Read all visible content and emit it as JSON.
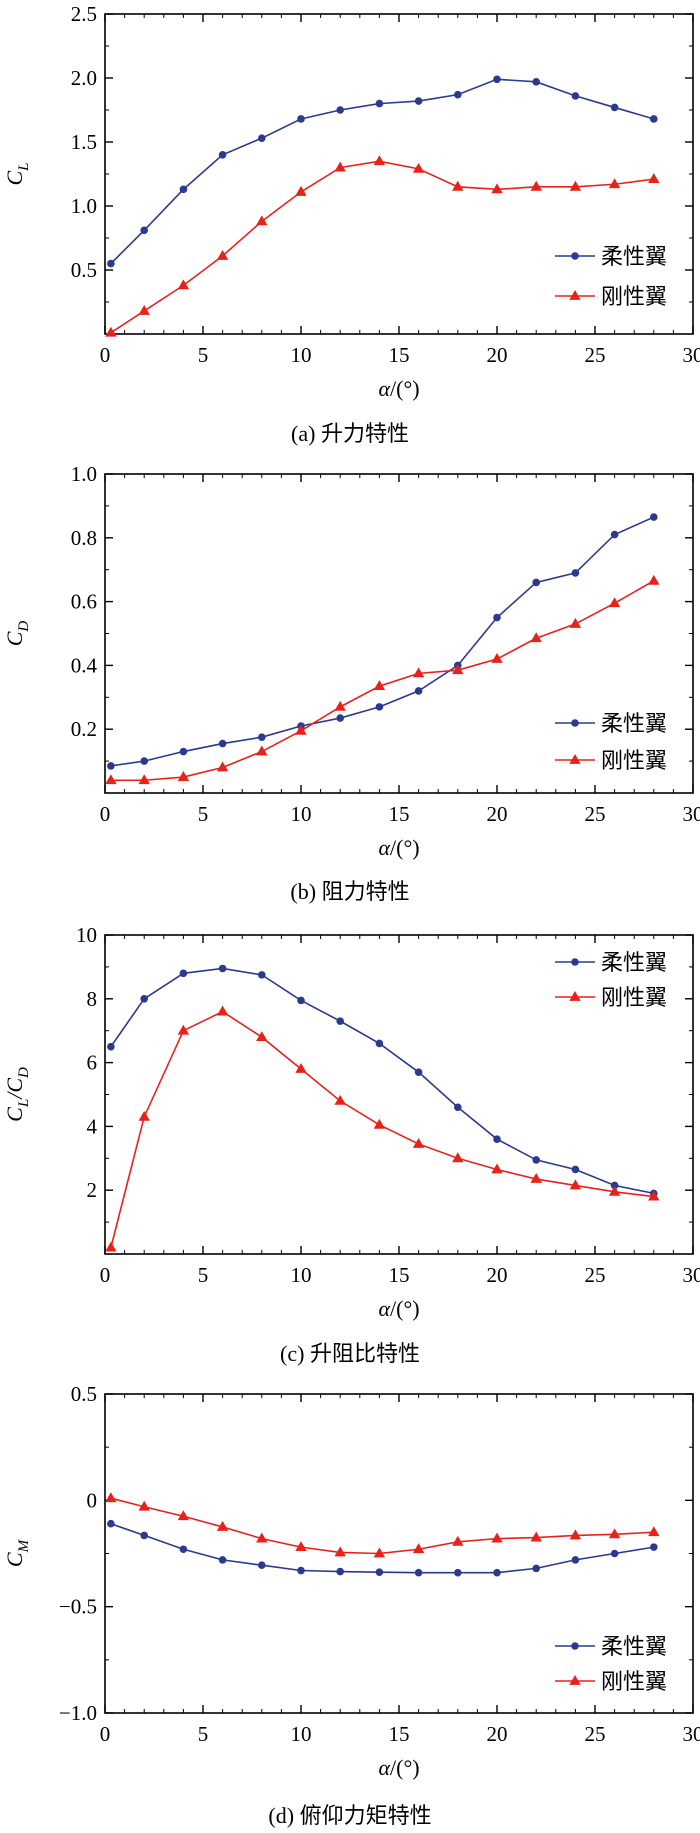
{
  "colors": {
    "flexible": "#2b3a8f",
    "rigid": "#e8221b",
    "axis": "#000000"
  },
  "x_tick_labels": [
    "0",
    "5",
    "10",
    "15",
    "20",
    "25",
    "30"
  ],
  "chart_data": [
    {
      "type": "line",
      "caption": "(a) 升力特性",
      "ylabel": {
        "main": "C",
        "sub": "L"
      },
      "xlabel": {
        "var": "α",
        "unit": "/(°)"
      },
      "xlim": [
        0,
        30
      ],
      "ylim": [
        0,
        2.5
      ],
      "y_ticks": [
        0.5,
        1.0,
        1.5,
        2.0,
        2.5
      ],
      "y_tick_labels": [
        "0.5",
        "1.0",
        "1.5",
        "2.0",
        "2.5"
      ],
      "legend_position": "lower-right",
      "series": [
        {
          "name": "柔性翼",
          "marker": "circle",
          "x": [
            0.3,
            2,
            4,
            6,
            8,
            10,
            12,
            14,
            16,
            18,
            20,
            22,
            24,
            26,
            28
          ],
          "values": [
            0.55,
            0.81,
            1.13,
            1.4,
            1.53,
            1.68,
            1.75,
            1.8,
            1.82,
            1.87,
            1.99,
            1.97,
            1.86,
            1.77,
            1.68
          ]
        },
        {
          "name": "刚性翼",
          "marker": "triangle",
          "x": [
            0.3,
            2,
            4,
            6,
            8,
            10,
            12,
            14,
            16,
            18,
            20,
            22,
            24,
            26,
            28
          ],
          "values": [
            0.01,
            0.18,
            0.38,
            0.61,
            0.88,
            1.11,
            1.3,
            1.35,
            1.29,
            1.15,
            1.13,
            1.15,
            1.15,
            1.17,
            1.21
          ]
        }
      ]
    },
    {
      "type": "line",
      "caption": "(b) 阻力特性",
      "ylabel": {
        "main": "C",
        "sub": "D"
      },
      "xlabel": {
        "var": "α",
        "unit": "/(°)"
      },
      "xlim": [
        0,
        30
      ],
      "ylim": [
        0,
        1.0
      ],
      "y_ticks": [
        0.2,
        0.4,
        0.6,
        0.8,
        1.0
      ],
      "y_tick_labels": [
        "0.2",
        "0.4",
        "0.6",
        "0.8",
        "1.0"
      ],
      "legend_position": "lower-right",
      "series": [
        {
          "name": "柔性翼",
          "marker": "circle",
          "x": [
            0.3,
            2,
            4,
            6,
            8,
            10,
            12,
            14,
            16,
            18,
            20,
            22,
            24,
            26,
            28
          ],
          "values": [
            0.085,
            0.1,
            0.13,
            0.155,
            0.175,
            0.21,
            0.235,
            0.27,
            0.32,
            0.4,
            0.55,
            0.66,
            0.69,
            0.81,
            0.865
          ]
        },
        {
          "name": "刚性翼",
          "marker": "triangle",
          "x": [
            0.3,
            2,
            4,
            6,
            8,
            10,
            12,
            14,
            16,
            18,
            20,
            22,
            24,
            26,
            28
          ],
          "values": [
            0.04,
            0.04,
            0.05,
            0.08,
            0.13,
            0.195,
            0.27,
            0.335,
            0.375,
            0.385,
            0.42,
            0.485,
            0.53,
            0.595,
            0.665
          ]
        }
      ]
    },
    {
      "type": "line",
      "caption": "(c) 升阻比特性",
      "ylabel": {
        "main": "C",
        "sub": "L",
        "main2": "/C",
        "sub2": "D"
      },
      "xlabel": {
        "var": "α",
        "unit": "/(°)"
      },
      "xlim": [
        0,
        30
      ],
      "ylim": [
        0,
        10
      ],
      "y_ticks": [
        2,
        4,
        6,
        8,
        10
      ],
      "y_tick_labels": [
        "2",
        "4",
        "6",
        "8",
        "10"
      ],
      "legend_position": "top-right",
      "series": [
        {
          "name": "柔性翼",
          "marker": "circle",
          "x": [
            0.3,
            2,
            4,
            6,
            8,
            10,
            12,
            14,
            16,
            18,
            20,
            22,
            24,
            26,
            28
          ],
          "values": [
            6.5,
            8.0,
            8.8,
            8.95,
            8.75,
            7.95,
            7.3,
            6.6,
            5.7,
            4.6,
            3.6,
            2.95,
            2.65,
            2.15,
            1.9
          ]
        },
        {
          "name": "刚性翼",
          "marker": "triangle",
          "x": [
            0.3,
            2,
            4,
            6,
            8,
            10,
            12,
            14,
            16,
            18,
            20,
            22,
            24,
            26,
            28
          ],
          "values": [
            0.2,
            4.3,
            7.0,
            7.6,
            6.8,
            5.8,
            4.8,
            4.05,
            3.45,
            3.0,
            2.65,
            2.35,
            2.15,
            1.95,
            1.8
          ]
        }
      ]
    },
    {
      "type": "line",
      "caption": "(d) 俯仰力矩特性",
      "ylabel": {
        "main": "C",
        "sub": "M"
      },
      "xlabel": {
        "var": "α",
        "unit": "/(°)"
      },
      "xlim": [
        0,
        30
      ],
      "ylim": [
        -1.0,
        0.5
      ],
      "y_ticks": [
        -1.0,
        -0.5,
        0,
        0.5
      ],
      "y_tick_labels": [
        "−1.0",
        "−0.5",
        "0",
        "0.5"
      ],
      "legend_position": "lower-right",
      "series": [
        {
          "name": "柔性翼",
          "marker": "circle",
          "x": [
            0.3,
            2,
            4,
            6,
            8,
            10,
            12,
            14,
            16,
            18,
            20,
            22,
            24,
            26,
            28
          ],
          "values": [
            -0.11,
            -0.165,
            -0.23,
            -0.28,
            -0.305,
            -0.33,
            -0.335,
            -0.338,
            -0.34,
            -0.34,
            -0.34,
            -0.32,
            -0.28,
            -0.25,
            -0.22
          ]
        },
        {
          "name": "刚性翼",
          "marker": "triangle",
          "x": [
            0.3,
            2,
            4,
            6,
            8,
            10,
            12,
            14,
            16,
            18,
            20,
            22,
            24,
            26,
            28
          ],
          "values": [
            0.01,
            -0.03,
            -0.075,
            -0.125,
            -0.18,
            -0.22,
            -0.245,
            -0.25,
            -0.23,
            -0.195,
            -0.18,
            -0.175,
            -0.165,
            -0.16,
            -0.15
          ]
        }
      ]
    }
  ]
}
